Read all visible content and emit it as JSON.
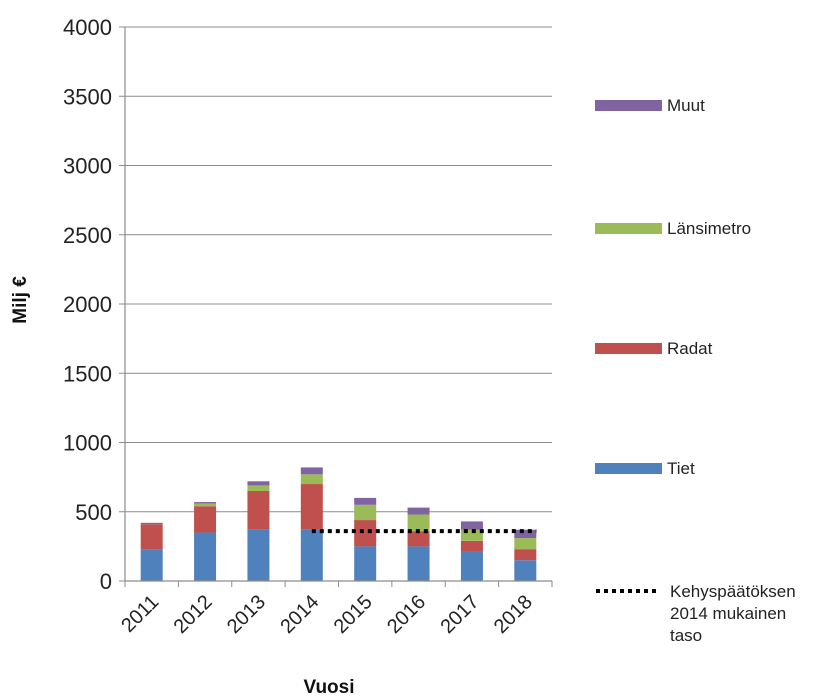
{
  "chart_data": {
    "type": "bar",
    "stacked": true,
    "xlabel": "Vuosi",
    "ylabel": "Milj €",
    "ylim": [
      0,
      4000
    ],
    "yticks": [
      "0",
      "500",
      "1000",
      "1500",
      "2000",
      "2500",
      "3000",
      "3500",
      "4000"
    ],
    "grid": "horizontal",
    "legend_position": "right",
    "categories": [
      "2011",
      "2012",
      "2013",
      "2014",
      "2015",
      "2016",
      "2017",
      "2018"
    ],
    "series": [
      {
        "name": "Tiet",
        "color": "#4F81BD",
        "values": [
          230,
          350,
          370,
          370,
          250,
          250,
          210,
          150
        ]
      },
      {
        "name": "Radat",
        "color": "#C0504D",
        "values": [
          180,
          190,
          280,
          330,
          190,
          110,
          80,
          80
        ]
      },
      {
        "name": "Länsimetro",
        "color": "#9BBB59",
        "values": [
          0,
          20,
          40,
          70,
          110,
          120,
          80,
          80
        ]
      },
      {
        "name": "Muut",
        "color": "#8064A2",
        "values": [
          10,
          10,
          30,
          50,
          50,
          50,
          60,
          60
        ]
      }
    ],
    "reference_line": {
      "label_lines": [
        "Kehyspäätöksen",
        "2014 mukainen",
        "taso"
      ],
      "value": 360,
      "from_category": "2014",
      "to_category": "2018",
      "style": "dotted",
      "color": "#000000"
    }
  }
}
